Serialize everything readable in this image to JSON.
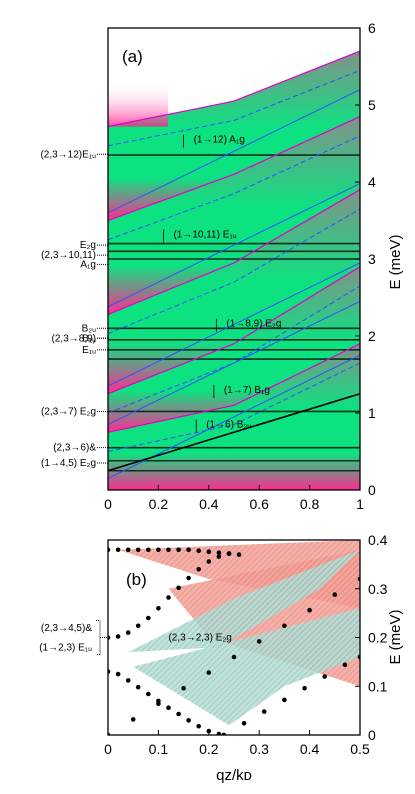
{
  "chart_data": [
    {
      "type": "line",
      "panel_label": "(a)",
      "xlim": [
        0,
        1
      ],
      "ylim": [
        0,
        6
      ],
      "x_ticks": [
        "0",
        "0.2",
        "0.4",
        "0.6",
        "0.8",
        "1"
      ],
      "y_ticks": [
        "0",
        "1",
        "2",
        "3",
        "4",
        "5",
        "6"
      ],
      "y_axis_side": "right",
      "ylabel": "E (meV)",
      "background_colors": {
        "green": "#00e07a",
        "magenta": "#ff1f8c",
        "gray": "#7d8a84"
      },
      "line_colors": {
        "blue": "#3050ff",
        "magenta": "#e000c8",
        "black": "#000000"
      },
      "flat_modes_meV": [
        0.25,
        0.38,
        0.55,
        1.02,
        1.7,
        1.82,
        1.95,
        2.1,
        3.0,
        3.1,
        3.2,
        4.35
      ],
      "band_tops": [
        {
          "name": "top",
          "values": [
            [
              0,
              4.72
            ],
            [
              0.5,
              5.05
            ],
            [
              1,
              5.7
            ]
          ]
        },
        {
          "name": "upper-mid",
          "values": [
            [
              0,
              3.5
            ],
            [
              0.5,
              4.1
            ],
            [
              1,
              4.85
            ]
          ]
        },
        {
          "name": "mid",
          "values": [
            [
              0,
              2.28
            ],
            [
              0.5,
              2.95
            ],
            [
              1,
              3.9
            ]
          ]
        },
        {
          "name": "lower-mid",
          "values": [
            [
              0,
              1.25
            ],
            [
              0.5,
              1.9
            ],
            [
              1,
              2.9
            ]
          ]
        },
        {
          "name": "low",
          "values": [
            [
              0,
              0.75
            ],
            [
              0.5,
              1.1
            ],
            [
              1,
              1.9
            ]
          ]
        }
      ],
      "left_annotations": [
        {
          "text": "(2,3→12)E₁ᵤ",
          "y": 4.36
        },
        {
          "text": "E₂g",
          "y": 3.18
        },
        {
          "text": "(2,3→10,11)",
          "y": 3.05
        },
        {
          "text": "A₁g",
          "y": 2.93
        },
        {
          "text": "B₂ᵤ",
          "y": 2.1
        },
        {
          "text": "(2,3→8,9)",
          "y": 1.97
        },
        {
          "text": "B₁ᵤ",
          "y": 1.97
        },
        {
          "text": "E₁ᵤ",
          "y": 1.82
        },
        {
          "text": "(2,3→7) E₂g",
          "y": 1.02
        },
        {
          "text": "(2,3→6)&",
          "y": 0.55
        },
        {
          "text": "(1→4,5) E₂g",
          "y": 0.35
        }
      ],
      "inner_annotations": [
        {
          "text": "(1→12) A₁g",
          "x": 0.3,
          "y": 4.55
        },
        {
          "text": "(1→10,11) E₁ᵤ",
          "x": 0.22,
          "y": 3.32
        },
        {
          "text": "(1→8,9) E₂g",
          "x": 0.43,
          "y": 2.16
        },
        {
          "text": "(1→7) B₁g",
          "x": 0.42,
          "y": 1.3
        },
        {
          "text": "(1→6) B₂ᵤ",
          "x": 0.35,
          "y": 0.85
        }
      ]
    },
    {
      "type": "scatter",
      "panel_label": "(b)",
      "xlim": [
        0,
        0.5
      ],
      "ylim": [
        0,
        0.4
      ],
      "x_ticks": [
        "0",
        "0.1",
        "0.2",
        "0.3",
        "0.4",
        "0.5"
      ],
      "y_ticks": [
        "0",
        "0.1",
        "0.2",
        "0.3",
        "0.4"
      ],
      "y_axis_side": "right",
      "ylabel": "E (meV)",
      "xlabel": "qᴢ/kᴅ",
      "continua_colors": {
        "red": "#e8786e",
        "teal": "#7fbcb2"
      },
      "left_annotations": [
        {
          "text": "(2,3→4,5)&",
          "y": 0.22
        },
        {
          "text": "(1→2,3) E₁ᵤ",
          "y": 0.18
        }
      ],
      "inner_annotations": [
        {
          "text": "(2,3→2,3) E₂g",
          "x": 0.12,
          "y": 0.2
        }
      ],
      "series": [
        {
          "x": [
            0.0,
            0.02,
            0.04,
            0.06,
            0.08,
            0.1,
            0.12,
            0.14,
            0.16,
            0.18,
            0.2,
            0.22,
            0.24,
            0.26
          ],
          "y": [
            0.38,
            0.38,
            0.38,
            0.38,
            0.38,
            0.38,
            0.38,
            0.38,
            0.38,
            0.378,
            0.376,
            0.374,
            0.372,
            0.37
          ]
        },
        {
          "x": [
            0.0,
            0.02,
            0.04,
            0.06,
            0.08,
            0.1,
            0.12,
            0.14,
            0.16,
            0.18,
            0.2,
            0.22,
            0.24
          ],
          "y": [
            0.2,
            0.202,
            0.21,
            0.224,
            0.24,
            0.26,
            0.282,
            0.302,
            0.322,
            0.34,
            0.356,
            0.366,
            0.372
          ]
        },
        {
          "x": [
            0.0,
            0.02,
            0.04,
            0.06,
            0.08,
            0.1,
            0.12,
            0.14,
            0.16,
            0.18,
            0.2,
            0.22,
            0.23
          ],
          "y": [
            0.13,
            0.125,
            0.112,
            0.098,
            0.084,
            0.07,
            0.056,
            0.043,
            0.03,
            0.018,
            0.008,
            0.002,
            0.0
          ]
        },
        {
          "x": [
            0.0,
            0.05,
            0.1,
            0.15,
            0.2,
            0.25,
            0.3,
            0.35,
            0.4,
            0.45,
            0.5
          ],
          "y": [
            0.0,
            0.032,
            0.064,
            0.096,
            0.128,
            0.16,
            0.192,
            0.224,
            0.256,
            0.288,
            0.32
          ]
        },
        {
          "x": [
            0.23,
            0.27,
            0.31,
            0.35,
            0.39,
            0.43,
            0.47,
            0.5
          ],
          "y": [
            0.0,
            0.024,
            0.048,
            0.072,
            0.096,
            0.12,
            0.144,
            0.16
          ]
        }
      ]
    }
  ]
}
